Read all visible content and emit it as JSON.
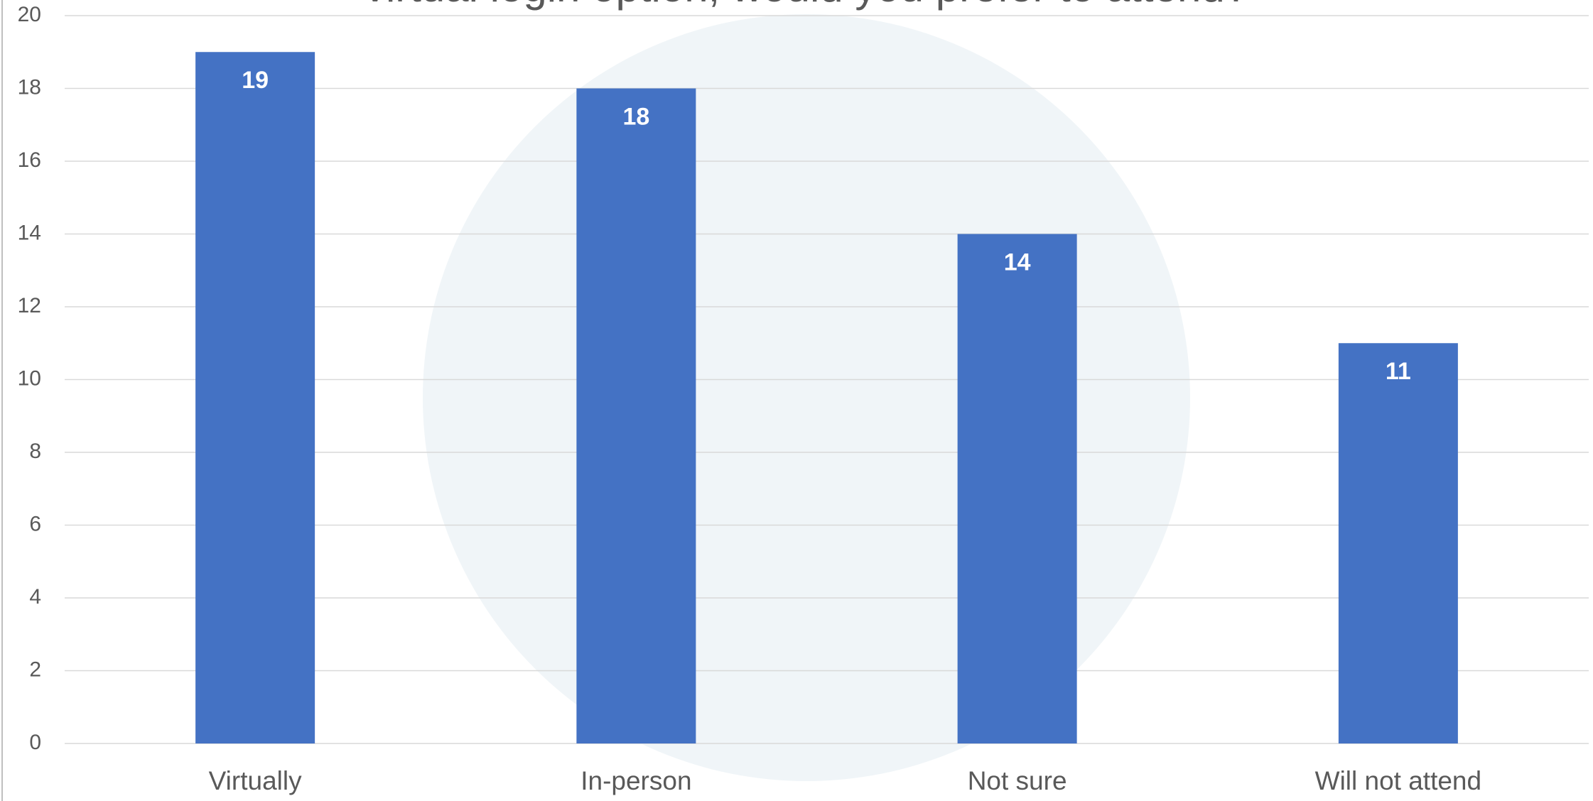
{
  "chart_data": {
    "type": "bar",
    "title": "virtual login option, would you prefer to attend?",
    "categories": [
      "Virtually",
      "In-person",
      "Not sure",
      "Will not attend"
    ],
    "values": [
      19,
      18,
      14,
      11
    ],
    "color": "#4472c4",
    "ylim": [
      0,
      20
    ],
    "yticks": [
      0,
      2,
      4,
      6,
      8,
      10,
      12,
      14,
      16,
      18,
      20
    ],
    "grid": true
  }
}
